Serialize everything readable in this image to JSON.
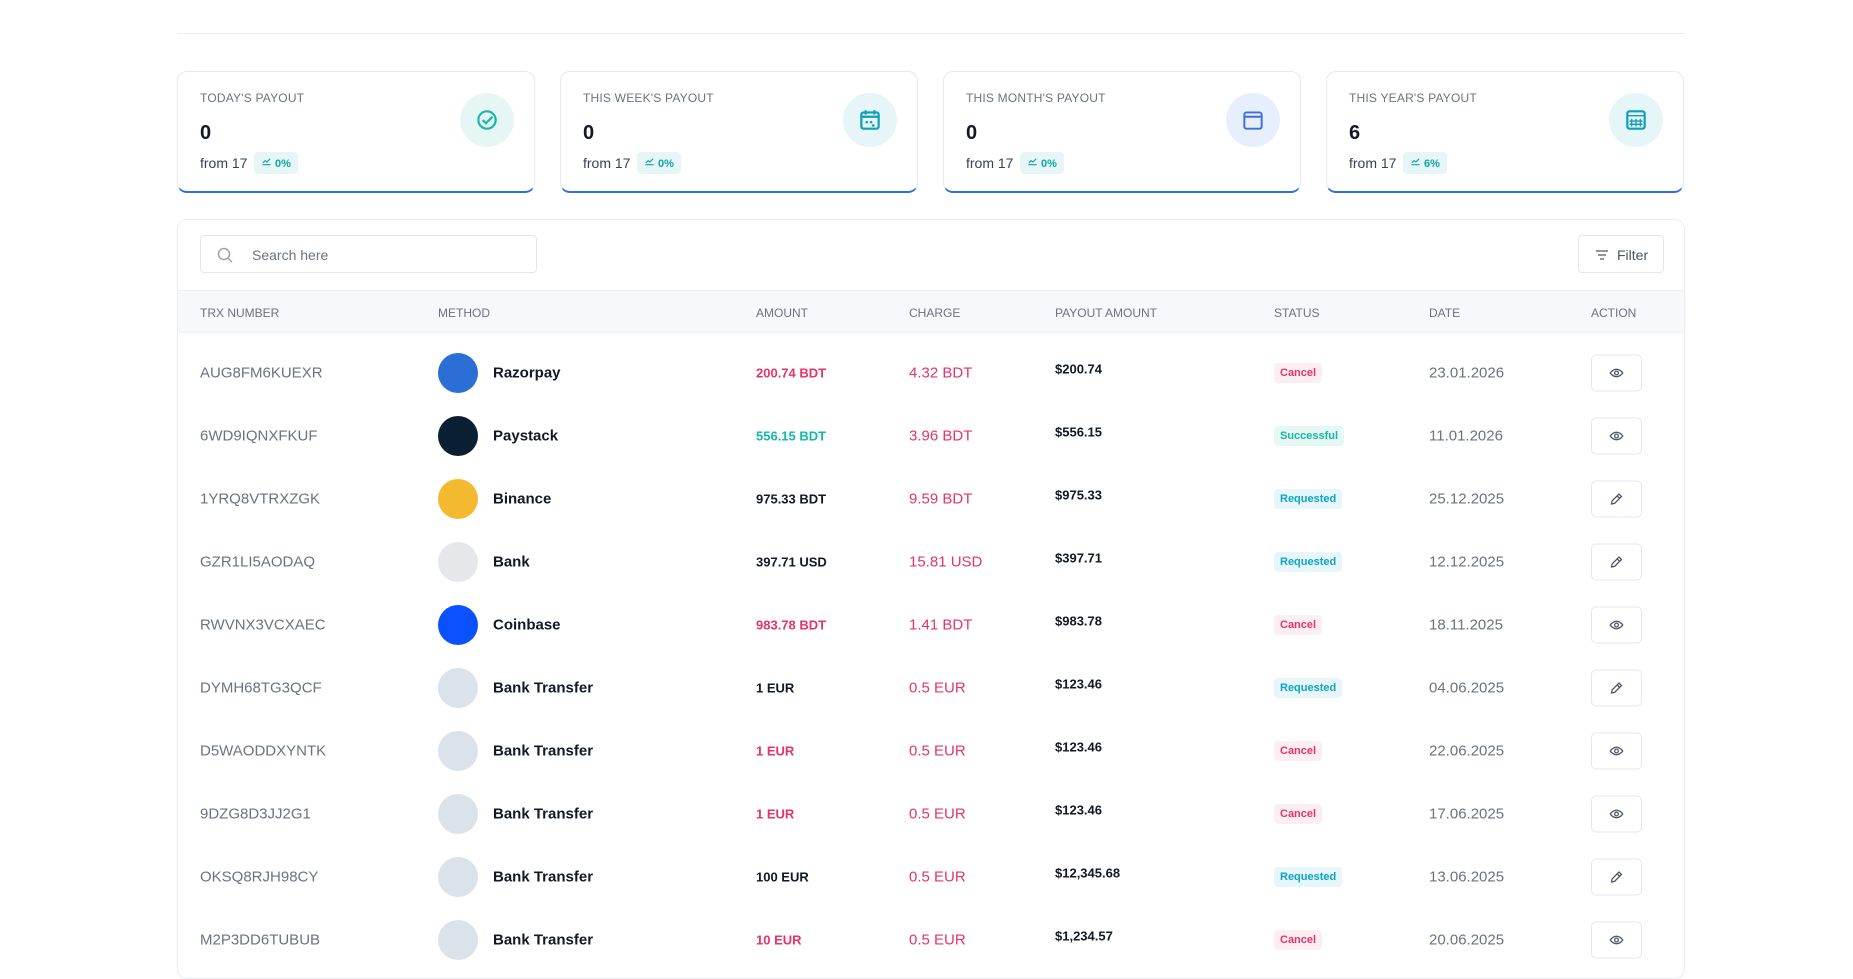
{
  "cards": [
    {
      "label": "TODAY'S PAYOUT",
      "value": "0",
      "from": "from 17",
      "change": "0%",
      "icon": "check"
    },
    {
      "label": "THIS WEEK'S PAYOUT",
      "value": "0",
      "from": "from 17",
      "change": "0%",
      "icon": "week"
    },
    {
      "label": "THIS MONTH'S PAYOUT",
      "value": "0",
      "from": "from 17",
      "change": "0%",
      "icon": "month"
    },
    {
      "label": "THIS YEAR'S PAYOUT",
      "value": "6",
      "from": "from 17",
      "change": "6%",
      "icon": "year"
    }
  ],
  "search_placeholder": "Search here",
  "filter": "Filter",
  "table": {
    "headers": [
      "TRX NUMBER",
      "METHOD",
      "AMOUNT",
      "CHARGE",
      "PAYOUT AMOUNT",
      "STATUS",
      "DATE",
      "ACTION"
    ],
    "rows": [
      {
        "trx": "AUG8FM6KUEXR",
        "method": "Razorpay",
        "icon_color": "#2b6fd6",
        "amount": "200.74 BDT",
        "amount_color": "#e5336b",
        "charge": "4.32 BDT",
        "payout": "$200.74",
        "status": "Cancel",
        "status_color": "#e5336b",
        "status_bg": "#fdeef2",
        "date": "23.01.2026",
        "action": "view"
      },
      {
        "trx": "6WD9IQNXFKUF",
        "method": "Paystack",
        "icon_color": "#0b1f33",
        "amount": "556.15 BDT",
        "amount_color": "#14b8a6",
        "charge": "3.96 BDT",
        "payout": "$556.15",
        "status": "Successful",
        "status_color": "#14b8a6",
        "status_bg": "#e6f7f4",
        "date": "11.01.2026",
        "action": "view"
      },
      {
        "trx": "1YRQ8VTRXZGK",
        "method": "Binance",
        "icon_color": "#f3ba2f",
        "amount": "975.33 BDT",
        "amount_color": "#111827",
        "charge": "9.59 BDT",
        "payout": "$975.33",
        "status": "Requested",
        "status_color": "#0ea5c4",
        "status_bg": "#e6f6fa",
        "date": "25.12.2025",
        "action": "edit"
      },
      {
        "trx": "GZR1LI5AODAQ",
        "method": "Bank",
        "icon_color": "#e5e7eb",
        "amount": "397.71 USD",
        "amount_color": "#111827",
        "charge": "15.81 USD",
        "payout": "$397.71",
        "status": "Requested",
        "status_color": "#0ea5c4",
        "status_bg": "#e6f6fa",
        "date": "12.12.2025",
        "action": "edit"
      },
      {
        "trx": "RWVNX3VCXAEC",
        "method": "Coinbase",
        "icon_color": "#0a52ff",
        "amount": "983.78 BDT",
        "amount_color": "#e5336b",
        "charge": "1.41 BDT",
        "payout": "$983.78",
        "status": "Cancel",
        "status_color": "#e5336b",
        "status_bg": "#fdeef2",
        "date": "18.11.2025",
        "action": "view"
      },
      {
        "trx": "DYMH68TG3QCF",
        "method": "Bank Transfer",
        "icon_color": "#dbe3ea",
        "amount": "1 EUR",
        "amount_color": "#111827",
        "charge": "0.5 EUR",
        "payout": "$123.46",
        "status": "Requested",
        "status_color": "#0ea5c4",
        "status_bg": "#e6f6fa",
        "date": "04.06.2025",
        "action": "edit"
      },
      {
        "trx": "D5WAODDXYNTK",
        "method": "Bank Transfer",
        "icon_color": "#dbe3ea",
        "amount": "1 EUR",
        "amount_color": "#e5336b",
        "charge": "0.5 EUR",
        "payout": "$123.46",
        "status": "Cancel",
        "status_color": "#e5336b",
        "status_bg": "#fdeef2",
        "date": "22.06.2025",
        "action": "view"
      },
      {
        "trx": "9DZG8D3JJ2G1",
        "method": "Bank Transfer",
        "icon_color": "#dbe3ea",
        "amount": "1 EUR",
        "amount_color": "#e5336b",
        "charge": "0.5 EUR",
        "payout": "$123.46",
        "status": "Cancel",
        "status_color": "#e5336b",
        "status_bg": "#fdeef2",
        "date": "17.06.2025",
        "action": "view"
      },
      {
        "trx": "OKSQ8RJH98CY",
        "method": "Bank Transfer",
        "icon_color": "#dbe3ea",
        "amount": "100 EUR",
        "amount_color": "#111827",
        "charge": "0.5 EUR",
        "payout": "$12,345.68",
        "status": "Requested",
        "status_color": "#0ea5c4",
        "status_bg": "#e6f6fa",
        "date": "13.06.2025",
        "action": "edit"
      },
      {
        "trx": "M2P3DD6TUBUB",
        "method": "Bank Transfer",
        "icon_color": "#dbe3ea",
        "amount": "10 EUR",
        "amount_color": "#e5336b",
        "charge": "0.5 EUR",
        "payout": "$1,234.57",
        "status": "Cancel",
        "status_color": "#e5336b",
        "status_bg": "#fdeef2",
        "date": "20.06.2025",
        "action": "view"
      }
    ]
  }
}
